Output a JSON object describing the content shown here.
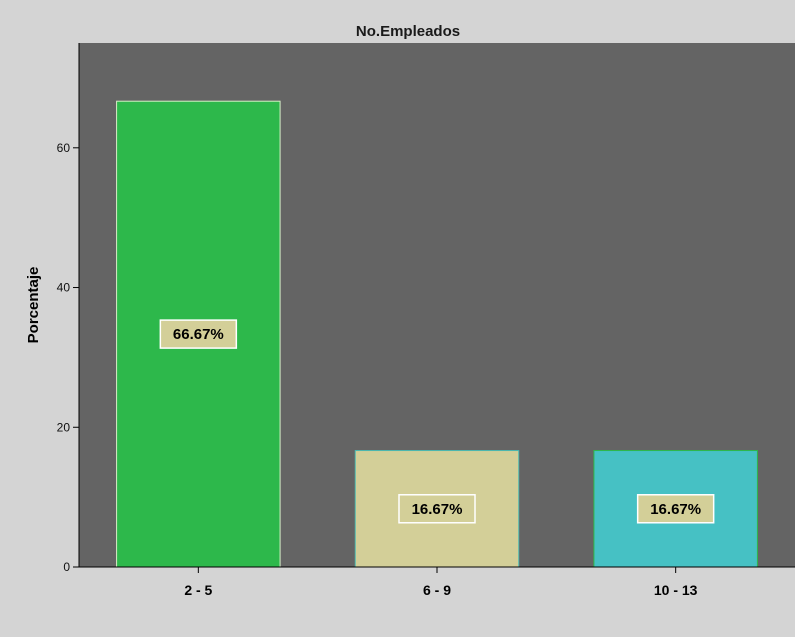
{
  "chart_data": {
    "type": "bar",
    "title": "No.Empleados",
    "xlabel": "",
    "ylabel": "Porcentaje",
    "categories": [
      "2 - 5",
      "6 - 9",
      "10 - 13"
    ],
    "values": [
      66.67,
      16.67,
      16.67
    ],
    "data_labels": [
      "66.67%",
      "16.67%",
      "16.67%"
    ],
    "bar_colors": [
      "#2db84b",
      "#d3cf98",
      "#46c1c4"
    ],
    "bar_edge_colors": [
      "#d8f0c8",
      "#4cb8b0",
      "#2db84b"
    ],
    "label_bg_color": "#d3cf98",
    "plot_background": "#646464",
    "page_background": "#d4d4d4",
    "ylim": [
      0,
      75
    ],
    "yticks": [
      0,
      20,
      40,
      60
    ],
    "ytick_labels": [
      "0",
      "20",
      "40",
      "60"
    ],
    "grid": false,
    "legend": "none"
  }
}
